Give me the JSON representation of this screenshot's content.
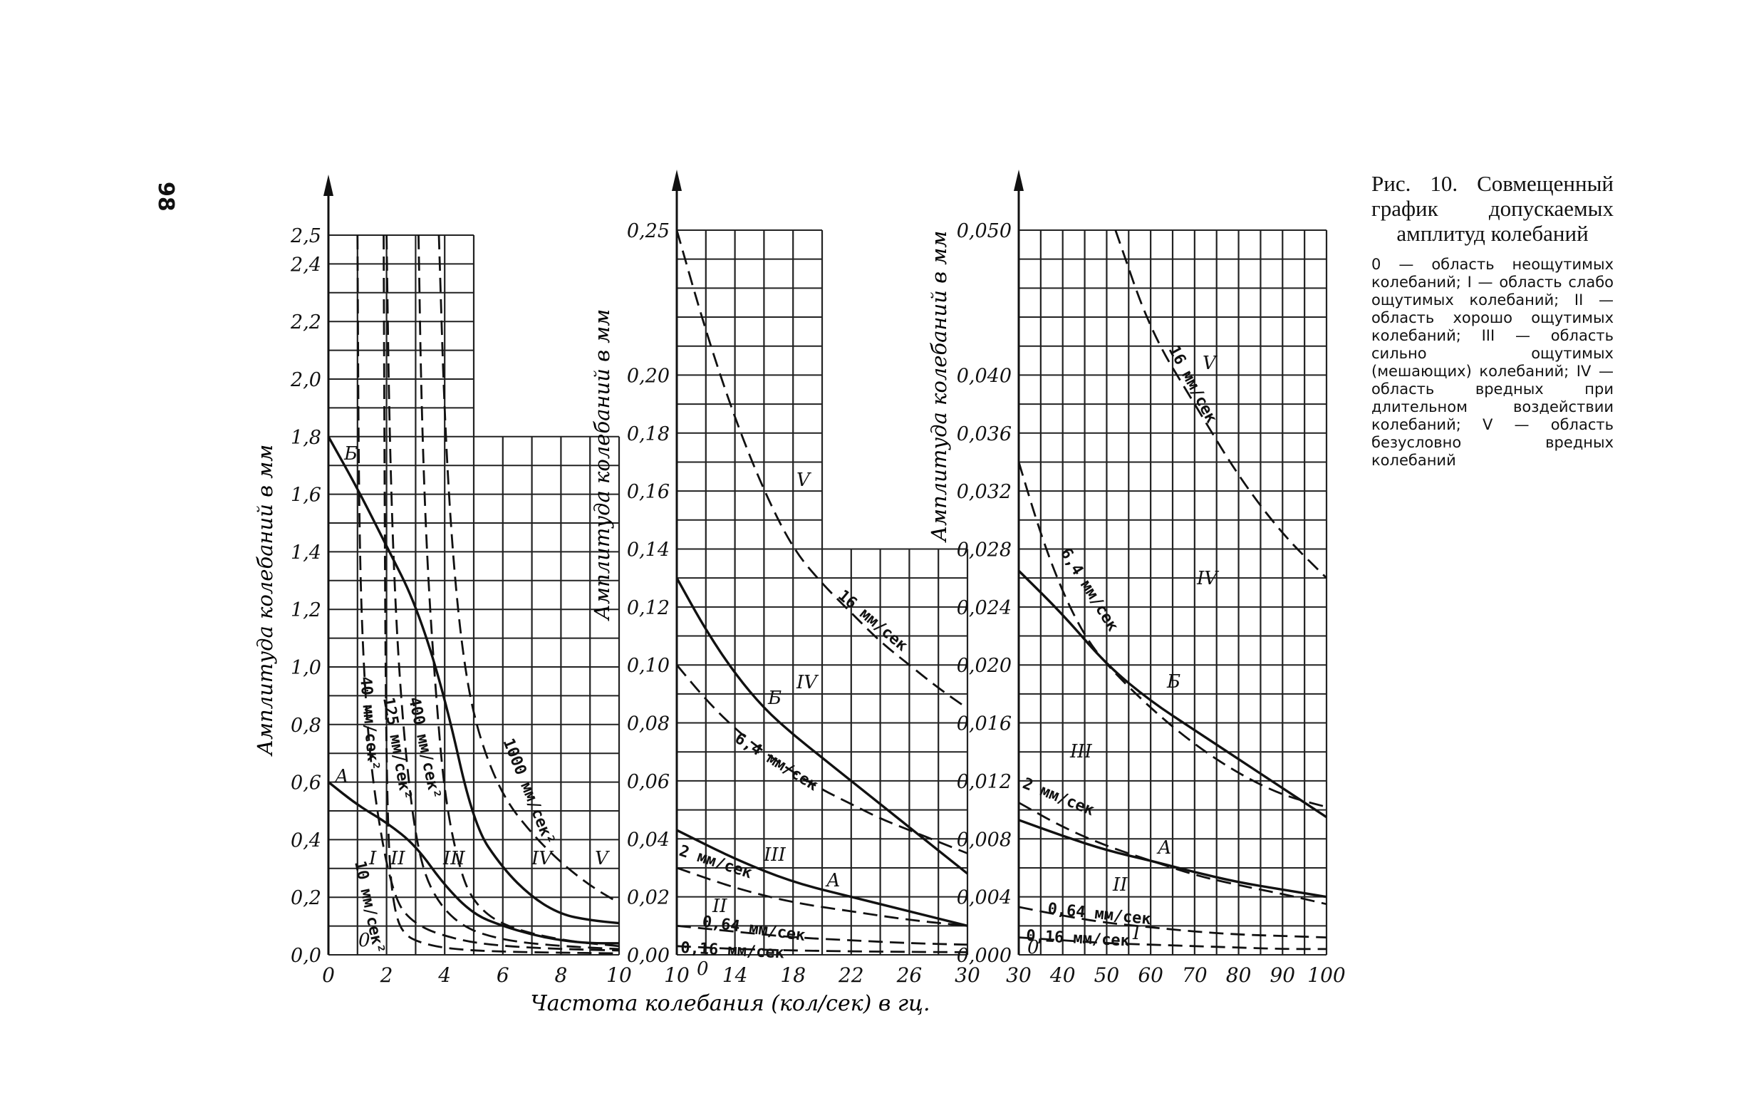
{
  "page_number": "98",
  "caption": {
    "title": "Рис. 10. Совмещенный график допускаемых амплитуд колебаний",
    "body": "0 — область неощутимых колебаний; I — область слабо ощутимых колебаний; II — область хорошо ощутимых колебаний; III — область сильно ощутимых (мешающих) колебаний; IV — область вредных при длительном воздействии колебаний; V — область безусловно вредных колебаний"
  },
  "chart_data": [
    {
      "type": "line",
      "ylabel": "Амплитуда колебаний в мм",
      "xlabel": "Частота колебания (кол/сек) в гц.",
      "xlim": [
        0,
        10
      ],
      "ylim": [
        0,
        2.5
      ],
      "x_ticks": [
        "0",
        "2",
        "4",
        "6",
        "8",
        "10"
      ],
      "y_ticks": [
        "0,0",
        "0,2",
        "0,4",
        "0,6",
        "0,8",
        "1,0",
        "1,2",
        "1,4",
        "1,6",
        "1,8",
        "2,0",
        "2,2",
        "2,4",
        "2,5"
      ],
      "series": [
        {
          "name": "Б",
          "style": "solid",
          "x": [
            0,
            1,
            2,
            3,
            4,
            5,
            6,
            7,
            8,
            9,
            10
          ],
          "y": [
            1.8,
            1.62,
            1.42,
            1.22,
            0.9,
            0.45,
            0.3,
            0.2,
            0.14,
            0.12,
            0.11
          ]
        },
        {
          "name": "А",
          "style": "solid",
          "x": [
            0,
            1,
            2,
            3,
            4,
            5,
            6,
            7,
            8,
            9,
            10
          ],
          "y": [
            0.6,
            0.52,
            0.46,
            0.38,
            0.24,
            0.14,
            0.1,
            0.07,
            0.05,
            0.04,
            0.04
          ]
        },
        {
          "name": "10 мм/сек²",
          "style": "dashed",
          "x": [
            1.9,
            1.95,
            2.0,
            2.1,
            2.3,
            2.6,
            3.2,
            4.2,
            6,
            10
          ],
          "y": [
            2.5,
            1.2,
            0.65,
            0.3,
            0.14,
            0.07,
            0.04,
            0.02,
            0.01,
            0.005
          ]
        },
        {
          "name": "40 мм/сек²",
          "style": "dashed",
          "x": [
            1.0,
            1.05,
            1.2,
            1.5,
            2.2,
            3,
            4.5,
            6,
            8,
            10
          ],
          "y": [
            2.5,
            1.5,
            1.0,
            0.6,
            0.2,
            0.1,
            0.05,
            0.03,
            0.02,
            0.015
          ]
        },
        {
          "name": "125 мм/сек²",
          "style": "dashed",
          "x": [
            2.0,
            2.1,
            2.3,
            2.6,
            3.0,
            3.5,
            4.5,
            6,
            8,
            10
          ],
          "y": [
            2.5,
            1.8,
            1.2,
            0.75,
            0.4,
            0.22,
            0.1,
            0.05,
            0.03,
            0.02
          ]
        },
        {
          "name": "400 мм/сек²",
          "style": "dashed",
          "x": [
            3.1,
            3.2,
            3.4,
            3.7,
            4.0,
            4.5,
            5,
            6,
            8,
            10
          ],
          "y": [
            2.5,
            1.9,
            1.35,
            0.9,
            0.55,
            0.3,
            0.18,
            0.1,
            0.05,
            0.03
          ]
        },
        {
          "name": "1000 мм/сек²",
          "style": "dashed",
          "x": [
            3.8,
            4.0,
            4.3,
            4.7,
            5.2,
            6,
            7,
            8,
            9,
            10
          ],
          "y": [
            2.5,
            1.85,
            1.35,
            0.98,
            0.75,
            0.55,
            0.42,
            0.32,
            0.24,
            0.18
          ]
        }
      ],
      "region_labels": [
        "0",
        "I",
        "II",
        "III",
        "IV",
        "V"
      ]
    },
    {
      "type": "line",
      "ylabel": "Амплитуда колебаний в мм",
      "xlim": [
        10,
        30
      ],
      "ylim": [
        0,
        0.25
      ],
      "x_ticks": [
        "10",
        "14",
        "18",
        "22",
        "26",
        "30"
      ],
      "y_ticks": [
        "0,00",
        "0,02",
        "0,04",
        "0,06",
        "0,08",
        "0,10",
        "0,12",
        "0,14",
        "0,16",
        "0,18",
        "0,20",
        "0,25"
      ],
      "series": [
        {
          "name": "16 мм/сек",
          "style": "dashed",
          "x": [
            10,
            12,
            14,
            16,
            18,
            20,
            22,
            24,
            26,
            28,
            30
          ],
          "y": [
            0.25,
            0.215,
            0.185,
            0.16,
            0.14,
            0.128,
            0.118,
            0.108,
            0.1,
            0.092,
            0.085
          ]
        },
        {
          "name": "Б",
          "style": "solid",
          "x": [
            10,
            12,
            14,
            16,
            18,
            20,
            22,
            24,
            26,
            28,
            30
          ],
          "y": [
            0.13,
            0.112,
            0.097,
            0.085,
            0.076,
            0.068,
            0.06,
            0.052,
            0.044,
            0.036,
            0.028
          ]
        },
        {
          "name": "6,4 мм/сек",
          "style": "dashed",
          "x": [
            10,
            12,
            14,
            16,
            18,
            20,
            22,
            24,
            26,
            28,
            30
          ],
          "y": [
            0.1,
            0.088,
            0.078,
            0.07,
            0.063,
            0.057,
            0.052,
            0.047,
            0.043,
            0.039,
            0.035
          ]
        },
        {
          "name": "А",
          "style": "solid",
          "x": [
            10,
            14,
            18,
            22,
            26,
            30
          ],
          "y": [
            0.043,
            0.033,
            0.025,
            0.02,
            0.015,
            0.01
          ]
        },
        {
          "name": "2 мм/сек",
          "style": "dashed",
          "x": [
            10,
            14,
            18,
            22,
            26,
            30
          ],
          "y": [
            0.03,
            0.023,
            0.018,
            0.015,
            0.012,
            0.01
          ]
        },
        {
          "name": "0,64 мм/сек",
          "style": "dashed",
          "x": [
            10,
            14,
            18,
            22,
            26,
            30
          ],
          "y": [
            0.01,
            0.008,
            0.006,
            0.005,
            0.004,
            0.0035
          ]
        },
        {
          "name": "0,16 мм/сек",
          "style": "dashed",
          "x": [
            10,
            14,
            18,
            22,
            26,
            30
          ],
          "y": [
            0.003,
            0.002,
            0.0015,
            0.0012,
            0.001,
            0.0009
          ]
        }
      ],
      "region_labels": [
        "0",
        "II",
        "III",
        "IV",
        "V"
      ]
    },
    {
      "type": "line",
      "ylabel": "Амплитуда колебаний в мм",
      "xlim": [
        30,
        100
      ],
      "ylim": [
        0,
        0.05
      ],
      "x_ticks": [
        "30",
        "40",
        "50",
        "60",
        "70",
        "80",
        "90",
        "100"
      ],
      "y_ticks": [
        "0,000",
        "0,004",
        "0,008",
        "0,012",
        "0,016",
        "0,020",
        "0,024",
        "0,028",
        "0,032",
        "0,036",
        "0,040",
        "0,050"
      ],
      "series": [
        {
          "name": "16 мм/сек",
          "style": "dashed",
          "x": [
            52,
            60,
            70,
            80,
            90,
            100
          ],
          "y": [
            0.05,
            0.043,
            0.038,
            0.033,
            0.029,
            0.026
          ]
        },
        {
          "name": "6,4 мм/сек",
          "style": "dashed",
          "x": [
            30,
            35,
            40,
            45,
            50,
            60,
            70,
            80,
            90,
            100
          ],
          "y": [
            0.034,
            0.029,
            0.025,
            0.022,
            0.02,
            0.017,
            0.0145,
            0.0125,
            0.011,
            0.0102
          ]
        },
        {
          "name": "Б",
          "style": "solid",
          "x": [
            30,
            40,
            50,
            60,
            70,
            80,
            90,
            100
          ],
          "y": [
            0.0265,
            0.0235,
            0.02,
            0.0175,
            0.0155,
            0.0135,
            0.0115,
            0.0095
          ]
        },
        {
          "name": "А",
          "style": "solid",
          "x": [
            30,
            40,
            50,
            60,
            70,
            80,
            90,
            100
          ],
          "y": [
            0.0093,
            0.0082,
            0.0072,
            0.0065,
            0.0057,
            0.005,
            0.0045,
            0.004
          ]
        },
        {
          "name": "2 мм/сек",
          "style": "dashed",
          "x": [
            30,
            40,
            50,
            60,
            70,
            80,
            90,
            100
          ],
          "y": [
            0.0105,
            0.0088,
            0.0075,
            0.0065,
            0.0055,
            0.0048,
            0.0042,
            0.0035
          ]
        },
        {
          "name": "0,64 мм/сек",
          "style": "dashed",
          "x": [
            30,
            40,
            50,
            60,
            70,
            80,
            90,
            100
          ],
          "y": [
            0.0033,
            0.0027,
            0.0022,
            0.0019,
            0.0016,
            0.0014,
            0.0013,
            0.0012
          ]
        },
        {
          "name": "0,16 мм/сек",
          "style": "dashed",
          "x": [
            30,
            40,
            50,
            60,
            70,
            80,
            90,
            100
          ],
          "y": [
            0.0012,
            0.001,
            0.0008,
            0.0007,
            0.0006,
            0.0005,
            0.0004,
            0.0004
          ]
        }
      ],
      "region_labels": [
        "0",
        "I",
        "II",
        "III",
        "IV",
        "V"
      ]
    }
  ],
  "annotations": {
    "p1": {
      "b": "Б",
      "a": "А",
      "r0": "0",
      "r1": "I",
      "r2": "II",
      "r3": "III",
      "r4": "IV",
      "r5": "V",
      "c10": "10 мм/сек²",
      "c40": "40 мм/сек²",
      "c125": "125 мм/сек²",
      "c400": "400 мм/сек²",
      "c1000": "1000 мм/сек²"
    },
    "p2": {
      "b": "Б",
      "a": "А",
      "r0": "0",
      "r2": "II",
      "r3": "III",
      "r4": "IV",
      "r5": "V",
      "c16": "16 мм/сек",
      "c64": "6,4 мм/сек",
      "c2": "2 мм/сек",
      "c064": "0,64 мм/сек",
      "c016": "0,16 мм/сек"
    },
    "p3": {
      "b": "Б",
      "a": "А",
      "r0": "0",
      "r1": "I",
      "r2": "II",
      "r3": "III",
      "r4": "IV",
      "r5": "V",
      "c16": "16 мм/сек",
      "c64": "6,4 мм/сек",
      "c2": "2 мм/сек",
      "c064": "0,64 мм/сек",
      "c016": "0,16 мм/сек"
    }
  }
}
